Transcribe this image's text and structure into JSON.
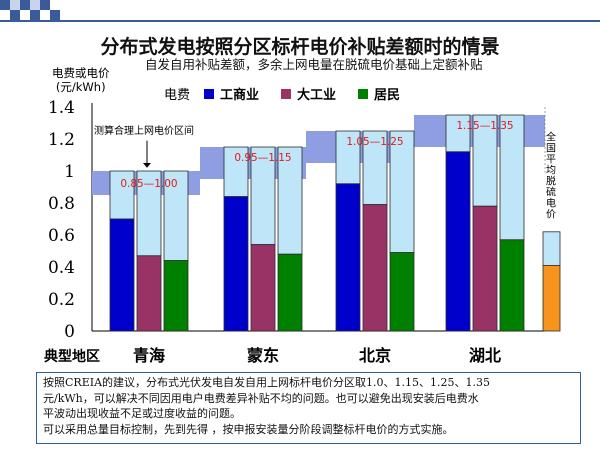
{
  "slide": {
    "title": "分布式发电按照分区标杆电价补贴差额时的情景",
    "subtitle": "自发自用补贴差额，多余上网电量在脱硫电价基础上定额补贴",
    "ylabel_line1": "电费或电价",
    "ylabel_line2": "(元/kWh)",
    "legend_prefix": "电费",
    "note_lines": [
      "按照CREIA的建议，分布式光伏发电自发自用上网标杆电价分区取1.0、1.15、1.25、1.35",
      "元/kWh，可以解决不同因用电户电费差异补贴不均的问题。也可以避免出现安装后电费水",
      "平波动出现收益不足或过度收益的问题。",
      "可以采用总量目标控制，先到先得 ，按申报安装量分阶段调整标杆电价的方式实施。"
    ],
    "colors": {
      "accent": "#355ba8",
      "band": "#8f9ee2",
      "subsidy": "#bfe6f8",
      "orange": "#f7941d"
    }
  },
  "chart_data": {
    "type": "bar",
    "xlabel": "典型地区",
    "ylim": [
      0,
      1.4
    ],
    "yticks": [
      "0",
      "0.2",
      "0.4",
      "0.6",
      "0.8",
      "1",
      "1.2",
      "1.4"
    ],
    "categories": [
      "青海",
      "蒙东",
      "北京",
      "湖北"
    ],
    "series": [
      {
        "name": "工商业",
        "color": "#0000cc",
        "values": [
          0.7,
          0.84,
          0.92,
          1.12
        ]
      },
      {
        "name": "大工业",
        "color": "#993366",
        "values": [
          0.47,
          0.54,
          0.79,
          0.78
        ]
      },
      {
        "name": "居民",
        "color": "#008000",
        "values": [
          0.44,
          0.48,
          0.49,
          0.57
        ]
      }
    ],
    "benchmark_price": [
      1.0,
      1.15,
      1.25,
      1.35
    ],
    "band_ranges": [
      "0.85—1.00",
      "0.95—1.15",
      "1.05—1.25",
      "1.15—1.35"
    ],
    "band_low": [
      0.85,
      0.95,
      1.05,
      1.15
    ],
    "annotation_band": "测算合理上网电价区间",
    "national_label": "全国平均脱硫电价",
    "national_value": 0.41,
    "national_top": 0.62
  }
}
